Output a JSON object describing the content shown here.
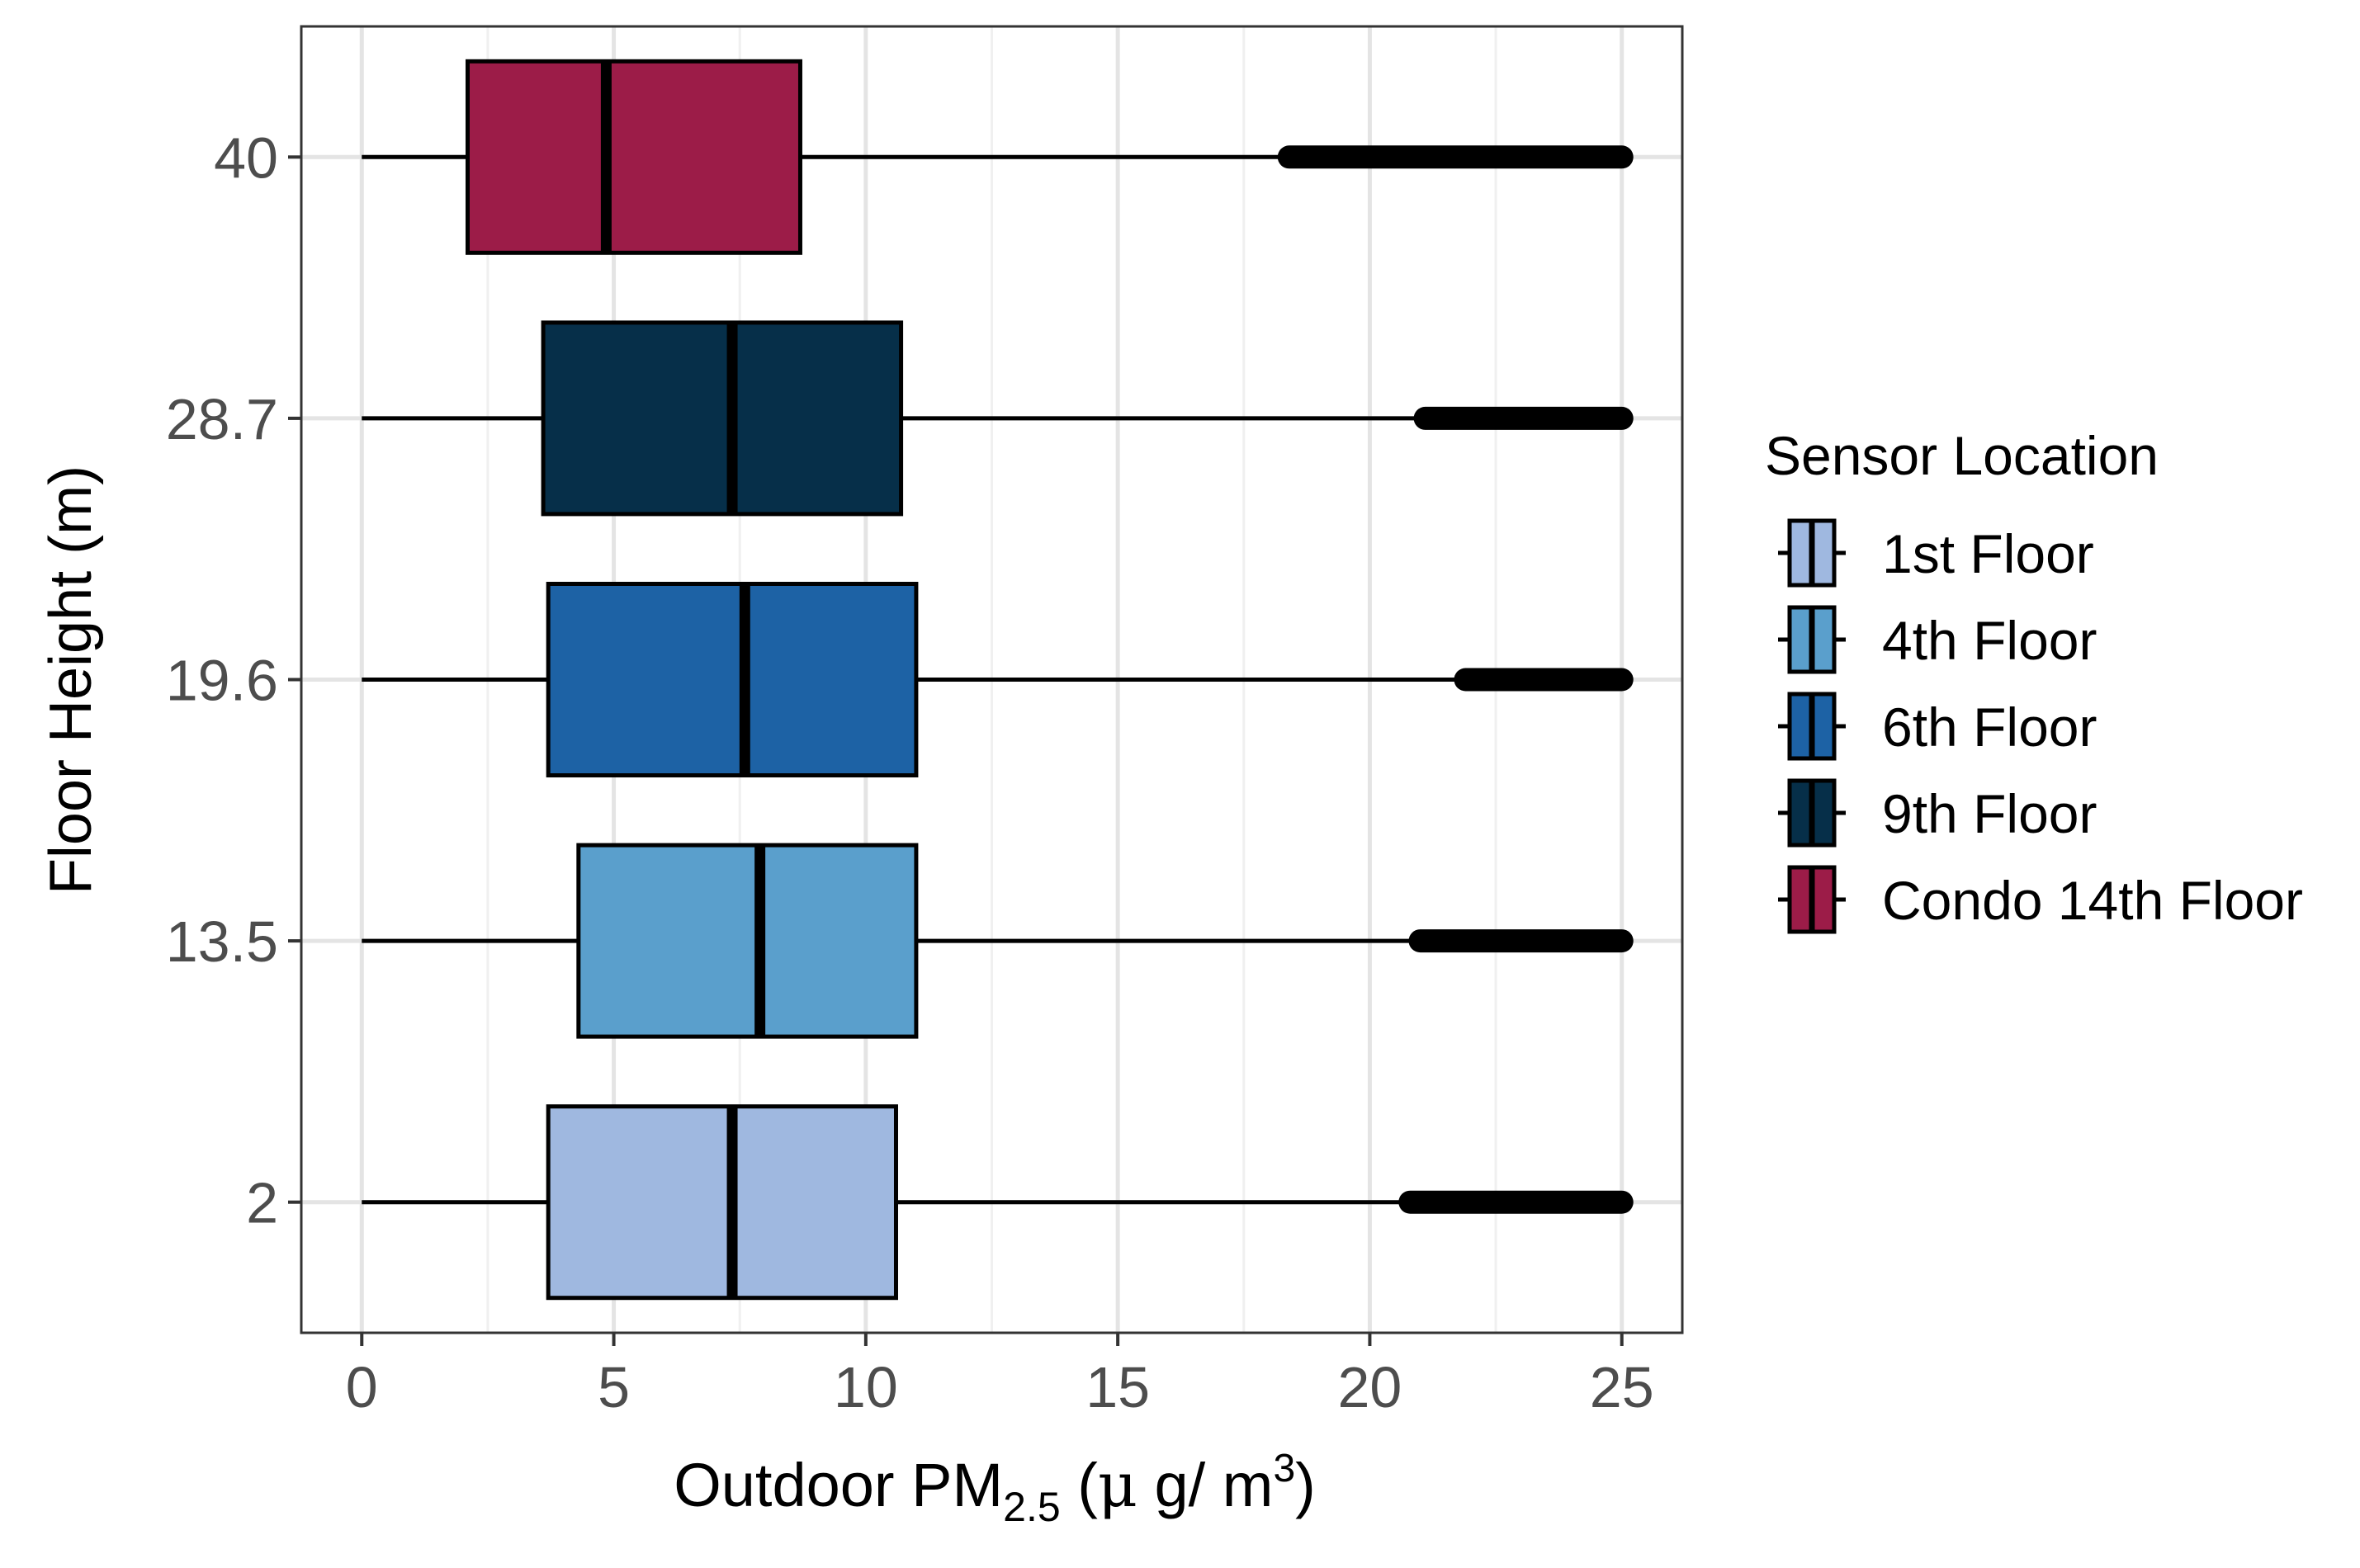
{
  "chart_data": {
    "type": "boxplot",
    "orientation": "horizontal",
    "xlabel": {
      "prefix": "Outdoor PM",
      "subscript": "2.5",
      "unit_open": " (",
      "unit_mu": "μ",
      "unit_mid": " g/ m",
      "unit_sup": "3",
      "unit_close": ")"
    },
    "ylabel": "Floor Height (m)",
    "xlim": [
      -1.2,
      26.2
    ],
    "x_ticks": [
      0,
      5,
      10,
      15,
      20,
      25
    ],
    "x_tick_labels": [
      "0",
      "5",
      "10",
      "15",
      "20",
      "25"
    ],
    "y_categories": [
      "2",
      "13.5",
      "19.6",
      "28.7",
      "40"
    ],
    "grid": true,
    "legend_title": "Sensor Location",
    "legend_position": "right",
    "series": [
      {
        "name": "1st Floor",
        "y": "2",
        "color": "#9FB8E0",
        "whisker_low": 0,
        "q1": 3.7,
        "median": 7.35,
        "q3": 10.6,
        "whisker_high": 20.8,
        "outlier_range": [
          20.8,
          25.0
        ]
      },
      {
        "name": "4th Floor",
        "y": "13.5",
        "color": "#5A9FCC",
        "whisker_low": 0,
        "q1": 4.3,
        "median": 7.9,
        "q3": 11.0,
        "whisker_high": 21.0,
        "outlier_range": [
          21.0,
          25.0
        ]
      },
      {
        "name": "6th Floor",
        "y": "19.6",
        "color": "#1D62A5",
        "whisker_low": 0,
        "q1": 3.7,
        "median": 7.6,
        "q3": 11.0,
        "whisker_high": 21.9,
        "outlier_range": [
          21.9,
          25.0
        ]
      },
      {
        "name": "9th Floor",
        "y": "28.7",
        "color": "#062F49",
        "whisker_low": 0,
        "q1": 3.6,
        "median": 7.35,
        "q3": 10.7,
        "whisker_high": 21.1,
        "outlier_range": [
          21.1,
          25.0
        ]
      },
      {
        "name": "Condo 14th Floor",
        "y": "40",
        "color": "#9C1C48",
        "whisker_low": 0,
        "q1": 2.1,
        "median": 4.85,
        "q3": 8.7,
        "whisker_high": 18.4,
        "outlier_range": [
          18.4,
          25.0
        ]
      }
    ]
  }
}
